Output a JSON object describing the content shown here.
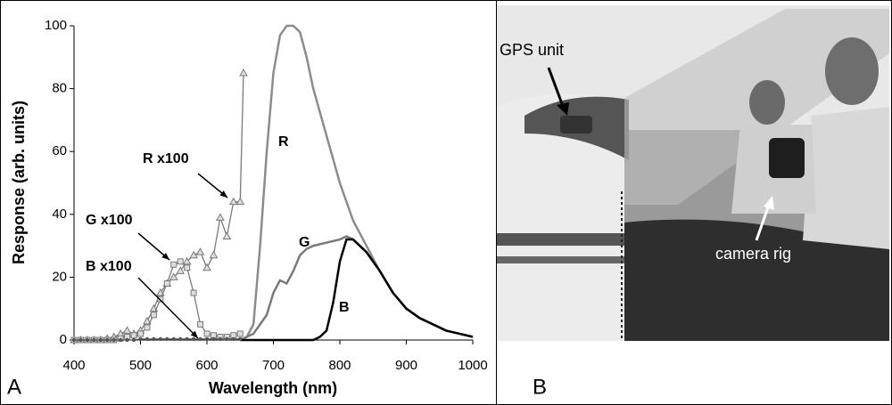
{
  "panels": {
    "a": "A",
    "b": "B"
  },
  "chart_data": {
    "type": "line",
    "x_label": "Wavelength (nm)",
    "y_label": "Response (arb. units)",
    "xlim": [
      400,
      1000
    ],
    "ylim": [
      0,
      100
    ],
    "xticks": [
      400,
      500,
      600,
      700,
      800,
      900,
      1000
    ],
    "yticks": [
      0,
      20,
      40,
      60,
      80,
      100
    ],
    "grid": false,
    "series": [
      {
        "name": "R",
        "color": "#8c8c8c",
        "marker": "none",
        "x": [
          650,
          660,
          670,
          680,
          690,
          700,
          710,
          720,
          730,
          740,
          750,
          760,
          780,
          800,
          820,
          840,
          860,
          880,
          900,
          920,
          940,
          960,
          980,
          1000
        ],
        "values": [
          0,
          1,
          5,
          30,
          60,
          85,
          97,
          100,
          100,
          98,
          90,
          80,
          65,
          50,
          38,
          30,
          22,
          15,
          10,
          7,
          5,
          3,
          2,
          1
        ]
      },
      {
        "name": "G",
        "color": "#7a7a7a",
        "marker": "none",
        "x": [
          650,
          670,
          690,
          700,
          710,
          720,
          730,
          740,
          750,
          760,
          780,
          800,
          810,
          820,
          840,
          860,
          880,
          900,
          920,
          940,
          960,
          980,
          1000
        ],
        "values": [
          0,
          2,
          8,
          15,
          19,
          18,
          22,
          27,
          29,
          30,
          31,
          32,
          33,
          32,
          28,
          22,
          15,
          10,
          7,
          5,
          3,
          2,
          1
        ]
      },
      {
        "name": "B",
        "color": "#000000",
        "marker": "none",
        "x": [
          650,
          760,
          770,
          780,
          790,
          800,
          810,
          820,
          840,
          860,
          880,
          900,
          920,
          940,
          960,
          980,
          1000
        ],
        "values": [
          0,
          0,
          1,
          3,
          12,
          25,
          32,
          32,
          28,
          22,
          15,
          10,
          7,
          5,
          3,
          2,
          1
        ]
      },
      {
        "name": "R x100",
        "color": "#7a7a7a",
        "marker": "triangle",
        "x": [
          400,
          410,
          420,
          430,
          440,
          450,
          460,
          470,
          480,
          490,
          500,
          510,
          520,
          530,
          540,
          550,
          560,
          570,
          580,
          590,
          600,
          610,
          620,
          630,
          640,
          650,
          655
        ],
        "values": [
          0,
          0,
          0,
          0,
          0,
          0.5,
          1,
          2,
          3,
          2,
          3,
          6,
          10,
          15,
          18,
          20,
          22,
          25,
          27,
          28,
          23,
          27,
          39,
          33,
          44,
          44,
          85
        ]
      },
      {
        "name": "G x100",
        "color": "#7a7a7a",
        "marker": "square",
        "x": [
          400,
          410,
          420,
          430,
          440,
          450,
          460,
          470,
          480,
          490,
          500,
          510,
          520,
          530,
          540,
          550,
          560,
          570,
          580,
          590,
          600,
          610,
          620,
          630,
          640,
          650
        ],
        "values": [
          0,
          0,
          0,
          0,
          0,
          0,
          0,
          0.5,
          1,
          1.5,
          2,
          4,
          8,
          13,
          18,
          24,
          25,
          23,
          15,
          5,
          2,
          1.5,
          1,
          1,
          1.5,
          2
        ]
      },
      {
        "name": "B x100",
        "color": "#555555",
        "marker": "dot",
        "x": [
          400,
          410,
          420,
          430,
          440,
          450,
          460,
          470,
          480,
          490,
          500,
          510,
          520,
          530,
          540,
          550,
          560,
          570,
          580,
          590,
          600,
          610,
          620,
          630,
          640,
          650
        ],
        "values": [
          0,
          0,
          0,
          0,
          0,
          0,
          0,
          0,
          0,
          0,
          0.3,
          0.3,
          0.3,
          0.3,
          0.3,
          0.3,
          0.3,
          0.3,
          0.3,
          0.3,
          0.3,
          0.3,
          0.3,
          0.3,
          0.3,
          0.3
        ]
      }
    ]
  },
  "photo": {
    "labels": [
      "GPS unit",
      "camera rig"
    ]
  }
}
